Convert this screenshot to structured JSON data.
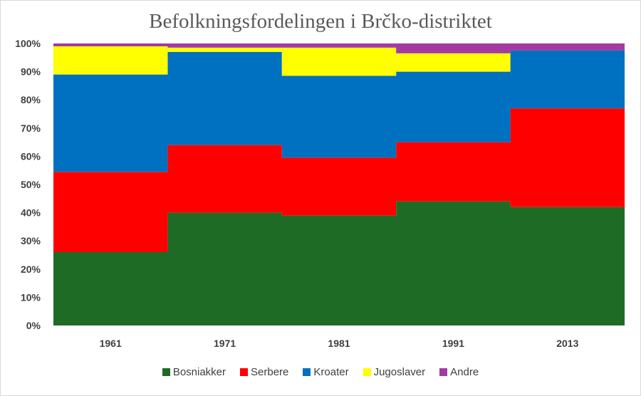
{
  "chart_data": {
    "type": "area",
    "stacked_percent": true,
    "title": "Befolkningsfordelingen i Brčko-distriktet",
    "categories": [
      "1961",
      "1971",
      "1981",
      "1991",
      "2013"
    ],
    "yticks": [
      "0%",
      "10%",
      "20%",
      "30%",
      "40%",
      "50%",
      "60%",
      "70%",
      "80%",
      "90%",
      "100%"
    ],
    "ylim": [
      0,
      100
    ],
    "legend_position": "bottom",
    "series": [
      {
        "name": "Bosniakker",
        "color": "#1e6b26",
        "values": [
          26,
          40,
          39,
          44,
          42
        ]
      },
      {
        "name": "Serbere",
        "color": "#ff0000",
        "values": [
          28.5,
          24,
          20.5,
          21,
          35
        ]
      },
      {
        "name": "Kroater",
        "color": "#0070c0",
        "values": [
          34.5,
          33,
          29,
          25,
          20.5
        ]
      },
      {
        "name": "Jugoslaver",
        "color": "#ffff00",
        "values": [
          10,
          1.5,
          10,
          6.5,
          0
        ]
      },
      {
        "name": "Andre",
        "color": "#a33ba3",
        "values": [
          1,
          1.5,
          1.5,
          3.5,
          2.5
        ]
      }
    ]
  }
}
